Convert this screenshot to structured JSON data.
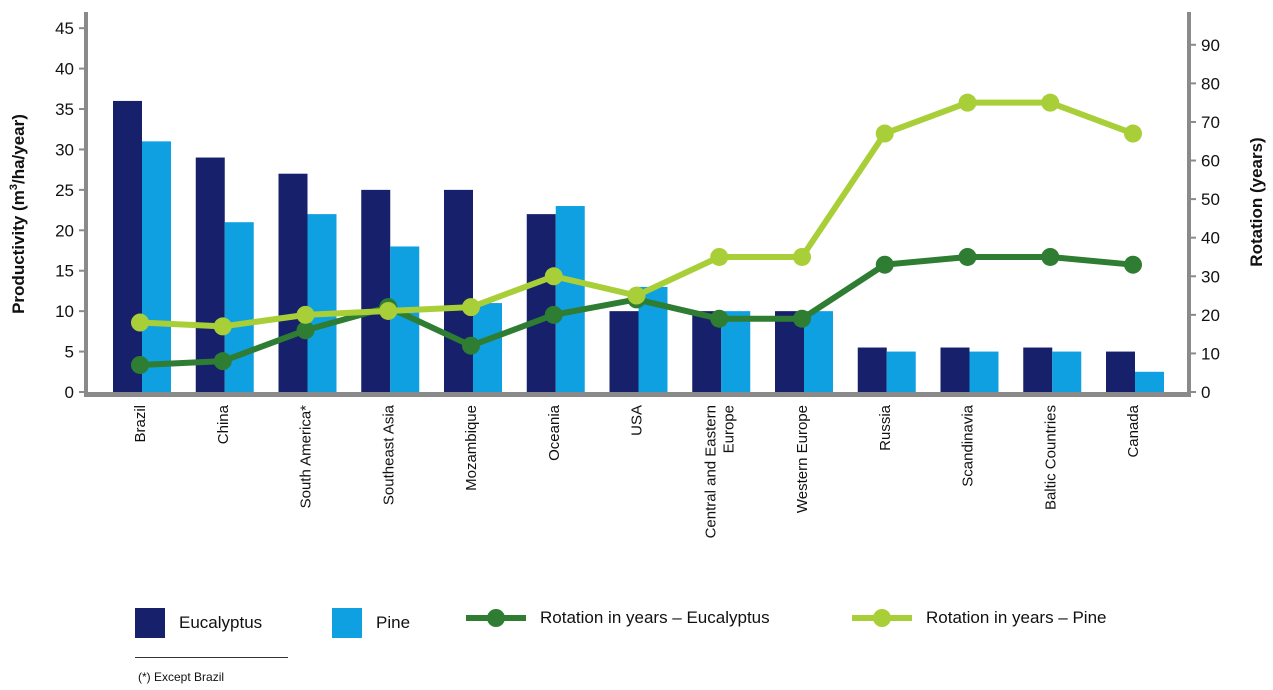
{
  "colors": {
    "eucalyptus": "#16206b",
    "pine": "#0ea0e0",
    "rotation_eucalyptus": "#2e7d32",
    "rotation_pine": "#a9cf38",
    "axis": "#8a8a8a"
  },
  "chart_data": {
    "type": "bar",
    "categories": [
      "Brazil",
      "China",
      "South America*",
      "Southeast Asia",
      "Mozambique",
      "Oceania",
      "USA",
      "Central and Eastern Europe",
      "Western Europe",
      "Russia",
      "Scandinavia",
      "Baltic Countries",
      "Canada"
    ],
    "category_lines": [
      [
        "Brazil"
      ],
      [
        "China"
      ],
      [
        "South America*"
      ],
      [
        "Southeast Asia"
      ],
      [
        "Mozambique"
      ],
      [
        "Oceania"
      ],
      [
        "USA"
      ],
      [
        "Central and Eastern",
        "Europe"
      ],
      [
        "Western Europe"
      ],
      [
        "Russia"
      ],
      [
        "Scandinavia"
      ],
      [
        "Baltic Countries"
      ],
      [
        "Canada"
      ]
    ],
    "series": [
      {
        "name": "Eucalyptus",
        "kind": "bar",
        "axis": "left",
        "color": "#16206b",
        "values": [
          36,
          29,
          27,
          25,
          25,
          22,
          10,
          10,
          10,
          5.5,
          5.5,
          5.5,
          5
        ]
      },
      {
        "name": "Pine",
        "kind": "bar",
        "axis": "left",
        "color": "#0ea0e0",
        "values": [
          31,
          21,
          22,
          18,
          11,
          23,
          13,
          10,
          10,
          5,
          5,
          5,
          2.5
        ]
      },
      {
        "name": "Rotation in years – Eucalyptus",
        "kind": "line",
        "axis": "right",
        "color": "#2e7d32",
        "values": [
          7,
          8,
          16,
          22,
          12,
          20,
          24,
          19,
          19,
          33,
          35,
          35,
          33
        ]
      },
      {
        "name": "Rotation in years – Pine",
        "kind": "line",
        "axis": "right",
        "color": "#a9cf38",
        "values": [
          18,
          17,
          20,
          21,
          22,
          30,
          25,
          35,
          35,
          67,
          75,
          75,
          67
        ]
      }
    ],
    "ylabel_left": "Productivity (m³/ha/year)",
    "ylabel_left_base": "Productivity (m",
    "ylabel_left_sup": "3",
    "ylabel_left_rest": "/ha/year)",
    "ylabel_right": "Rotation (years)",
    "ylim_left": [
      0,
      47
    ],
    "yticks_left": [
      0,
      5,
      10,
      15,
      20,
      25,
      30,
      35,
      40,
      45
    ],
    "ylim_right": [
      0,
      98.5
    ],
    "yticks_right": [
      0,
      10,
      20,
      30,
      40,
      50,
      60,
      70,
      80,
      90
    ],
    "grid": false,
    "legend_position": "bottom"
  },
  "legend": {
    "eucalyptus": "Eucalyptus",
    "pine": "Pine",
    "rotation_eucalyptus": "Rotation in years – Eucalyptus",
    "rotation_pine": "Rotation in years – Pine"
  },
  "footnote": "(*) Except Brazil"
}
